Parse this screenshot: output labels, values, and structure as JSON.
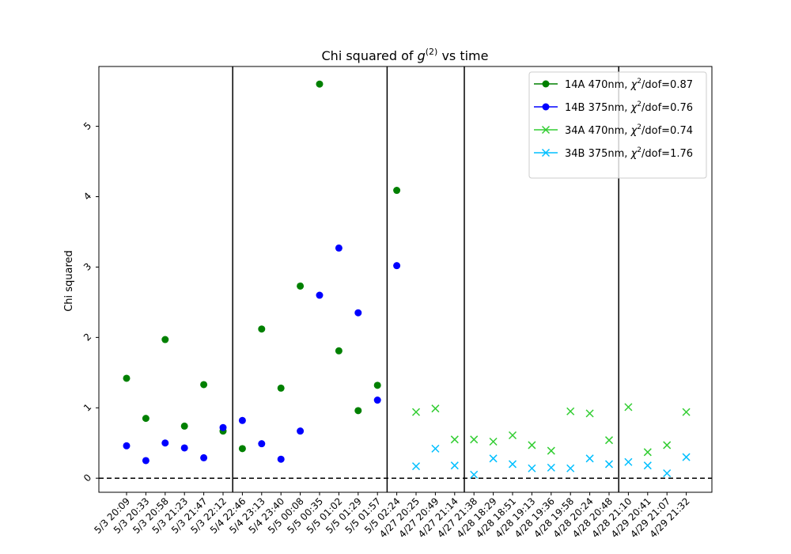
{
  "chart_data": {
    "type": "scatter",
    "title_prefix": "Chi squared of ",
    "title_math": "g",
    "title_sup": "(2)",
    "title_suffix": " vs time",
    "xlabel": "",
    "ylabel": "Chi squared",
    "ylim": [
      -0.2,
      5.85
    ],
    "yticks": [
      0,
      1,
      2,
      3,
      4,
      5
    ],
    "categories": [
      "5/3 20:09",
      "5/3 20:33",
      "5/3 20:58",
      "5/3 21:23",
      "5/3 21:47",
      "5/3 22:12",
      "5/4 22:46",
      "5/4 23:13",
      "5/4 23:40",
      "5/5 00:08",
      "5/5 00:35",
      "5/5 01:02",
      "5/5 01:29",
      "5/5 01:57",
      "5/5 02:24",
      "4/27 20:25",
      "4/27 20:49",
      "4/27 21:14",
      "4/27 21:38",
      "4/28 18:29",
      "4/28 18:51",
      "4/28 19:13",
      "4/28 19:36",
      "4/28 19:58",
      "4/28 20:24",
      "4/28 20:48",
      "4/28 21:10",
      "4/29 20:41",
      "4/29 21:07",
      "4/29 21:32"
    ],
    "vlines_after_index": [
      5,
      13,
      17,
      25
    ],
    "hline": 0,
    "series": [
      {
        "name": "14A 470nm",
        "chi_label": "χ",
        "dof_suffix": "/dof=0.87",
        "marker": "circle",
        "color": "#008000",
        "x": [
          0,
          1,
          2,
          3,
          4,
          5,
          6,
          7,
          8,
          9,
          10,
          11,
          12,
          13,
          14
        ],
        "values": [
          1.42,
          0.85,
          1.97,
          0.74,
          1.33,
          0.67,
          0.42,
          2.12,
          1.28,
          2.73,
          5.6,
          1.81,
          0.96,
          1.32,
          4.09
        ]
      },
      {
        "name": "14B 375nm",
        "chi_label": "χ",
        "dof_suffix": "/dof=0.76",
        "marker": "circle",
        "color": "#0000ff",
        "x": [
          0,
          1,
          2,
          3,
          4,
          5,
          6,
          7,
          8,
          9,
          10,
          11,
          12,
          13,
          14
        ],
        "values": [
          0.46,
          0.25,
          0.5,
          0.43,
          0.29,
          0.72,
          0.82,
          0.49,
          0.27,
          0.67,
          2.6,
          3.27,
          2.35,
          1.11,
          3.02
        ]
      },
      {
        "name": "34A 470nm",
        "chi_label": "χ",
        "dof_suffix": "/dof=0.74",
        "marker": "x",
        "color": "#32cd32",
        "x": [
          15,
          16,
          17,
          18,
          19,
          20,
          21,
          22,
          23,
          24,
          25,
          26,
          27,
          28,
          29
        ],
        "values": [
          0.94,
          0.99,
          0.55,
          0.55,
          0.52,
          0.61,
          0.47,
          0.39,
          0.95,
          0.92,
          0.54,
          1.01,
          0.37,
          0.47,
          0.94
        ]
      },
      {
        "name": "34B 375nm",
        "chi_label": "χ",
        "dof_suffix": "/dof=1.76",
        "marker": "x",
        "color": "#00bfff",
        "x": [
          15,
          16,
          17,
          18,
          19,
          20,
          21,
          22,
          23,
          24,
          25,
          26,
          27,
          28,
          29
        ],
        "values": [
          0.17,
          0.42,
          0.18,
          0.05,
          0.28,
          0.2,
          0.14,
          0.15,
          0.14,
          0.28,
          0.2,
          0.23,
          0.18,
          0.07,
          0.3
        ]
      }
    ],
    "legend_position": "top-right"
  }
}
